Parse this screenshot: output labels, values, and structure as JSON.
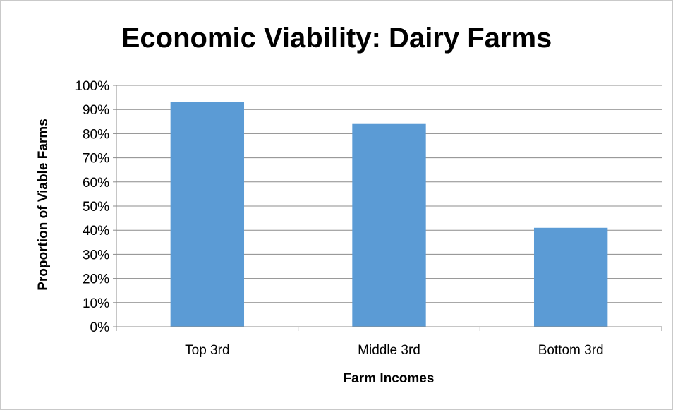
{
  "chart_data": {
    "type": "bar",
    "title": "Economic Viability: Dairy Farms",
    "xlabel": "Farm Incomes",
    "ylabel": "Proportion of Viable Farms",
    "categories": [
      "Top 3rd",
      "Middle 3rd",
      "Bottom 3rd"
    ],
    "values": [
      0.93,
      0.84,
      0.41
    ],
    "ylim": [
      0,
      1
    ],
    "yticks": [
      "0%",
      "10%",
      "20%",
      "30%",
      "40%",
      "50%",
      "60%",
      "70%",
      "80%",
      "90%",
      "100%"
    ],
    "grid": true,
    "legend": "none",
    "bar_color": "#5b9bd5",
    "grid_color": "#8c8c8c"
  }
}
